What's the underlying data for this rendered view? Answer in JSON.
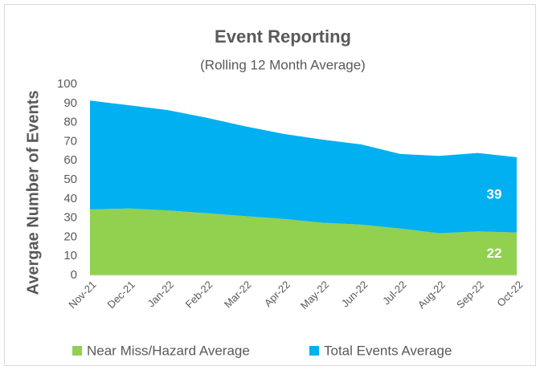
{
  "chart_data": {
    "type": "stacked_area",
    "title": "Event Reporting",
    "subtitle": "(Rolling 12 Month Average)",
    "y_label": "Avergae Number of Events",
    "categories": [
      "Nov-21",
      "Dec-21",
      "Jan-22",
      "Feb-22",
      "Mar-22",
      "Apr-22",
      "May-22",
      "Jun-22",
      "Jul-22",
      "Aug-22",
      "Sep-22",
      "Oct-22"
    ],
    "series": [
      {
        "name": "Near Miss/Hazard Average",
        "color": "#92d050",
        "values": [
          34.5,
          35,
          34,
          32.5,
          31,
          29.5,
          27.5,
          26.5,
          24.5,
          22,
          23,
          22.4
        ],
        "value_labels": [
          null,
          null,
          null,
          null,
          null,
          null,
          null,
          null,
          null,
          null,
          null,
          "22"
        ]
      },
      {
        "name": "Total Events Average",
        "color": "#00b0f0",
        "values": [
          57,
          54,
          52.5,
          50,
          47,
          44.5,
          43.5,
          42,
          39,
          40.5,
          41,
          39.4
        ],
        "value_labels": [
          null,
          null,
          null,
          null,
          null,
          null,
          null,
          null,
          null,
          null,
          null,
          "39"
        ]
      }
    ],
    "ylim": [
      0,
      100
    ],
    "yticks": [
      0,
      10,
      20,
      30,
      40,
      50,
      60,
      70,
      80,
      90,
      100
    ],
    "grid": false,
    "legend": "bottom"
  }
}
